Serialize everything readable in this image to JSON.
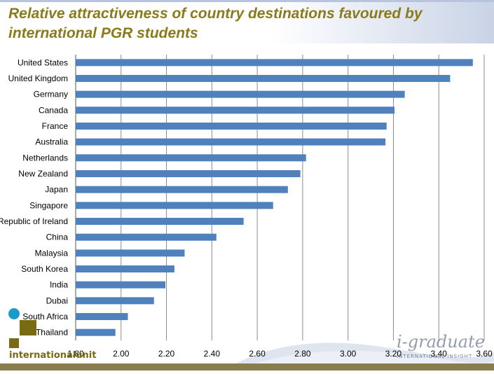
{
  "title": "Relative attractiveness of country destinations favoured by international PGR students",
  "brand": "internationalunit",
  "watermark": {
    "script": "i-graduate",
    "sub": "INTERNATIONAL INSIGHT"
  },
  "colors": {
    "bar": "#4f81bd",
    "title": "#8a7a1a",
    "grid": "#8c8c8c"
  },
  "chart_data": {
    "type": "bar",
    "orientation": "horizontal",
    "categories": [
      "United States",
      "United Kingdom",
      "Germany",
      "Canada",
      "France",
      "Australia",
      "Netherlands",
      "New Zealand",
      "Japan",
      "Singapore",
      "Republic of Ireland",
      "China",
      "Malaysia",
      "South Korea",
      "India",
      "Dubai",
      "South Africa",
      "Thailand"
    ],
    "values": [
      3.55,
      3.45,
      3.25,
      3.205,
      3.17,
      3.165,
      2.815,
      2.79,
      2.735,
      2.67,
      2.54,
      2.42,
      2.28,
      2.235,
      2.195,
      2.145,
      2.03,
      1.975
    ],
    "xlim": [
      1.8,
      3.6
    ],
    "xticks": [
      "1.80",
      "2.00",
      "2.20",
      "2.40",
      "2.60",
      "2.80",
      "3.00",
      "3.20",
      "3.40",
      "3.60"
    ],
    "grid": true,
    "legend": "none"
  }
}
